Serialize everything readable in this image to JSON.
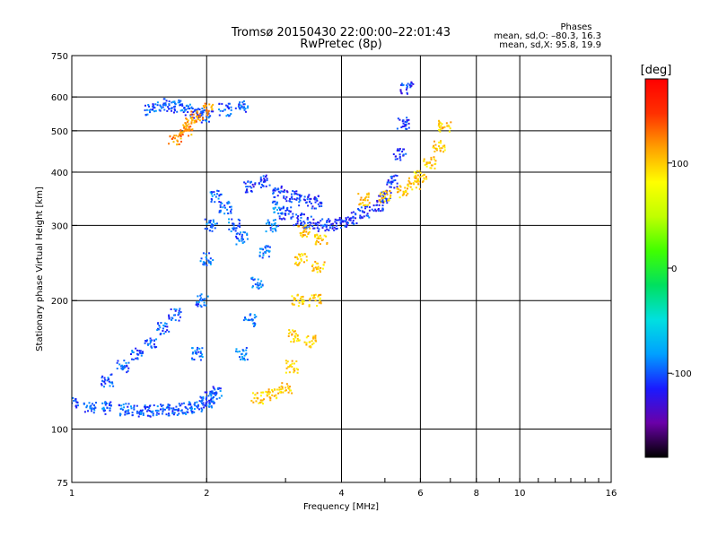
{
  "chart_data": {
    "type": "scatter",
    "title": "Tromsø 20150430 22:00:00–22:01:43",
    "subtitle": "RwPretec (8p)",
    "xlabel": "Frequency [MHz]",
    "ylabel": "Stationary phase Virtual Height [km]",
    "x_scale": "log",
    "y_scale": "log",
    "xlim": [
      1,
      16
    ],
    "ylim": [
      75,
      750
    ],
    "x_ticks": [
      1,
      2,
      4,
      6,
      8,
      10,
      16
    ],
    "x_tick_labels": [
      "1",
      "2",
      "4",
      "6",
      "8",
      "10",
      "16"
    ],
    "x_grid": [
      1,
      2,
      4,
      6,
      8,
      10,
      16
    ],
    "y_ticks": [
      75,
      100,
      200,
      300,
      400,
      500,
      600,
      750
    ],
    "y_tick_labels": [
      "75",
      "100",
      "200",
      "300",
      "400",
      "500",
      "600",
      "750"
    ],
    "y_grid": [
      100,
      200,
      300,
      400,
      500,
      600
    ],
    "grid": true,
    "phase_stats": {
      "heading": "Phases",
      "line_o": "mean, sd,O: –80.3, 16.3",
      "line_x": "mean, sd,X:  95.8, 19.9"
    },
    "colorbar": {
      "label": "[deg]",
      "range": [
        -180,
        180
      ],
      "ticks": [
        100,
        0,
        -100
      ],
      "tick_labels": [
        "100",
        "0",
        "-100"
      ],
      "colormap": [
        "#000000",
        "#6a00a8",
        "#1a1aff",
        "#00a0ff",
        "#00e0e0",
        "#00e060",
        "#40ff00",
        "#c0ff00",
        "#ffff00",
        "#ffa000",
        "#ff3000",
        "#ff0000"
      ]
    },
    "series": [
      {
        "name": "",
        "color_phase": -100,
        "x": [
          1.0,
          1.1,
          1.2,
          1.3,
          1.4,
          1.5,
          1.6,
          1.7,
          1.8,
          1.9,
          2.0,
          2.05,
          2.1
        ],
        "y": [
          115,
          113,
          112,
          111,
          110,
          110,
          111,
          111,
          112,
          113,
          115,
          118,
          122
        ]
      },
      {
        "name": "",
        "color_phase": -100,
        "x": [
          1.2,
          1.3,
          1.4,
          1.5,
          1.6,
          1.7
        ],
        "y": [
          130,
          140,
          150,
          160,
          172,
          185
        ]
      },
      {
        "name": "",
        "color_phase": -95,
        "x": [
          1.9,
          1.95,
          2.0,
          2.05,
          2.1,
          2.2,
          2.3,
          2.4
        ],
        "y": [
          150,
          200,
          250,
          300,
          350,
          330,
          300,
          280
        ]
      },
      {
        "name": "",
        "color_phase": -90,
        "x": [
          2.4,
          2.5,
          2.6,
          2.7,
          2.8,
          2.9
        ],
        "y": [
          150,
          180,
          220,
          260,
          300,
          330
        ]
      },
      {
        "name": "",
        "color_phase": -110,
        "x": [
          3.0,
          3.2,
          3.4,
          3.6,
          3.8,
          4.0,
          4.2,
          4.5,
          4.8,
          5.0,
          5.2,
          5.4,
          5.5,
          5.6
        ],
        "y": [
          320,
          310,
          305,
          300,
          302,
          306,
          312,
          322,
          335,
          350,
          380,
          440,
          520,
          630
        ]
      },
      {
        "name": "",
        "color_phase": -110,
        "x": [
          2.5,
          2.7,
          2.9,
          3.1,
          3.3,
          3.5
        ],
        "y": [
          370,
          380,
          360,
          350,
          345,
          340
        ]
      },
      {
        "name": "",
        "color_phase": -100,
        "x": [
          1.5,
          1.6,
          1.7,
          1.8,
          1.9,
          2.0,
          2.2,
          2.4
        ],
        "y": [
          560,
          575,
          570,
          560,
          550,
          540,
          560,
          570
        ]
      },
      {
        "name": "",
        "color_phase": 100,
        "x": [
          2.6,
          2.8,
          3.0,
          3.1,
          3.15,
          3.2,
          3.25,
          3.3
        ],
        "y": [
          118,
          120,
          125,
          140,
          165,
          200,
          250,
          290
        ]
      },
      {
        "name": "",
        "color_phase": 100,
        "x": [
          3.4,
          3.5,
          3.55,
          3.6
        ],
        "y": [
          160,
          200,
          240,
          280
        ]
      },
      {
        "name": "",
        "color_phase": 100,
        "x": [
          4.5,
          5.0,
          5.5,
          5.8,
          6.0,
          6.3,
          6.6,
          6.8
        ],
        "y": [
          345,
          350,
          360,
          375,
          390,
          420,
          460,
          510
        ]
      },
      {
        "name": "",
        "color_phase": 120,
        "x": [
          1.7,
          1.8,
          1.85,
          1.9,
          2.0
        ],
        "y": [
          480,
          500,
          520,
          540,
          560
        ]
      }
    ]
  }
}
